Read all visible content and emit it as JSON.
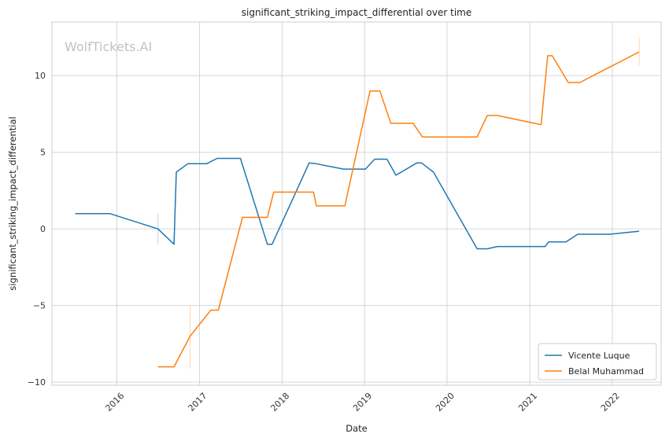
{
  "chart_data": {
    "type": "line",
    "title": "significant_striking_impact_differential over time",
    "xlabel": "Date",
    "ylabel": "significant_striking_impact_differential",
    "watermark": "WolfTickets.AI",
    "x_ticks": [
      "2016",
      "2017",
      "2018",
      "2019",
      "2020",
      "2021",
      "2022"
    ],
    "y_ticks": [
      10,
      5,
      0,
      -5,
      -10
    ],
    "xlim": [
      "2015-03-20",
      "2022-08-05"
    ],
    "ylim": [
      -10.2,
      13.5
    ],
    "grid": true,
    "legend_position": "bottom-right",
    "series": [
      {
        "name": "Vicente Luque",
        "color": "#1f77b4",
        "points": [
          [
            "2015-07-01",
            1.0
          ],
          [
            "2015-12-01",
            1.0
          ],
          [
            "2016-07-01",
            0.0
          ],
          [
            "2016-09-10",
            -1.0
          ],
          [
            "2016-09-20",
            3.7
          ],
          [
            "2016-11-10",
            4.25
          ],
          [
            "2017-02-01",
            4.25
          ],
          [
            "2017-03-20",
            4.6
          ],
          [
            "2017-07-01",
            4.6
          ],
          [
            "2017-10-28",
            -1.0
          ],
          [
            "2017-11-18",
            -1.0
          ],
          [
            "2018-05-01",
            4.3
          ],
          [
            "2018-06-01",
            4.25
          ],
          [
            "2018-09-30",
            3.9
          ],
          [
            "2019-01-05",
            3.9
          ],
          [
            "2019-02-15",
            4.55
          ],
          [
            "2019-04-10",
            4.55
          ],
          [
            "2019-05-20",
            3.5
          ],
          [
            "2019-08-20",
            4.3
          ],
          [
            "2019-09-10",
            4.3
          ],
          [
            "2019-11-02",
            3.7
          ],
          [
            "2020-05-13",
            -1.3
          ],
          [
            "2020-06-27",
            -1.3
          ],
          [
            "2020-08-10",
            -1.15
          ],
          [
            "2021-03-10",
            -1.15
          ],
          [
            "2021-03-25",
            -0.85
          ],
          [
            "2021-06-10",
            -0.85
          ],
          [
            "2021-08-01",
            -0.35
          ],
          [
            "2021-12-20",
            -0.35
          ],
          [
            "2022-04-30",
            -0.15
          ]
        ],
        "error_bars": [
          {
            "x": "2016-07-01",
            "low": -1.0,
            "high": 1.0
          }
        ]
      },
      {
        "name": "Belal Muhammad",
        "color": "#ff7f0e",
        "points": [
          [
            "2016-07-01",
            -9.0
          ],
          [
            "2016-09-10",
            -9.0
          ],
          [
            "2016-11-20",
            -7.0
          ],
          [
            "2017-02-20",
            -5.3
          ],
          [
            "2017-03-25",
            -5.3
          ],
          [
            "2017-07-10",
            0.75
          ],
          [
            "2017-10-28",
            0.75
          ],
          [
            "2017-11-25",
            2.4
          ],
          [
            "2018-05-20",
            2.4
          ],
          [
            "2018-06-02",
            1.5
          ],
          [
            "2018-10-06",
            1.5
          ],
          [
            "2019-01-25",
            9.0
          ],
          [
            "2019-03-10",
            9.0
          ],
          [
            "2019-04-27",
            6.9
          ],
          [
            "2019-08-03",
            6.9
          ],
          [
            "2019-09-14",
            6.0
          ],
          [
            "2020-05-13",
            6.0
          ],
          [
            "2020-06-27",
            7.4
          ],
          [
            "2020-08-10",
            7.4
          ],
          [
            "2021-02-20",
            6.8
          ],
          [
            "2021-03-21",
            11.3
          ],
          [
            "2021-04-10",
            11.3
          ],
          [
            "2021-06-20",
            9.55
          ],
          [
            "2021-08-10",
            9.55
          ],
          [
            "2022-04-30",
            11.55
          ]
        ],
        "error_bars": [
          {
            "x": "2016-11-20",
            "low": -9.1,
            "high": -5.0
          },
          {
            "x": "2022-04-30",
            "low": 10.6,
            "high": 12.5
          }
        ]
      }
    ]
  }
}
